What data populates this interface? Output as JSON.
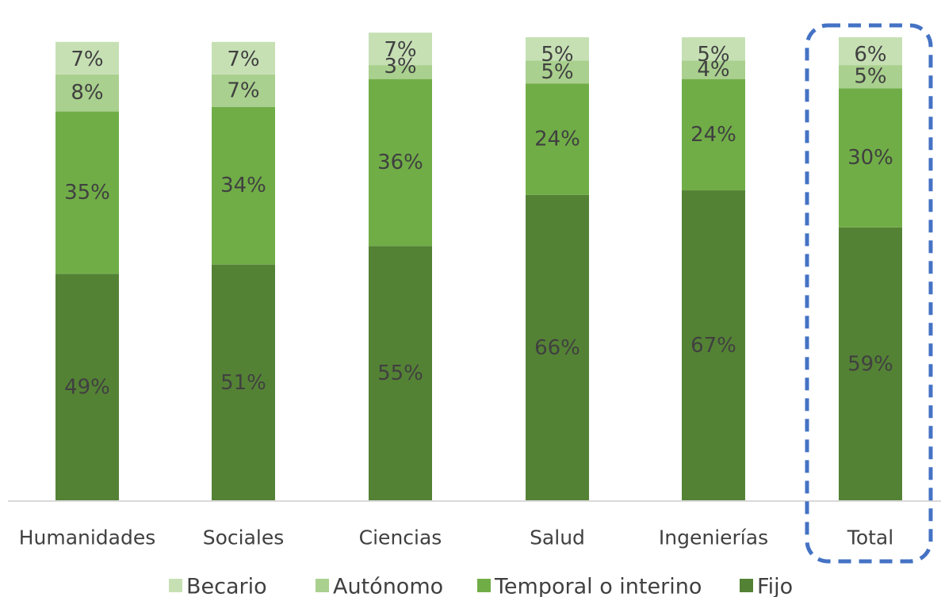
{
  "chart_data": {
    "type": "bar",
    "stacked": true,
    "categories": [
      "Humanidades",
      "Sociales",
      "Ciencias",
      "Salud",
      "Ingenierías",
      "Total"
    ],
    "series": [
      {
        "name": "Fijo",
        "color": "#548235",
        "values": [
          49,
          51,
          55,
          66,
          67,
          59
        ],
        "labels": [
          "49%",
          "51%",
          "55%",
          "66%",
          "67%",
          "59%"
        ]
      },
      {
        "name": "Temporal o interino",
        "color": "#70ad47",
        "values": [
          35,
          34,
          36,
          24,
          24,
          30
        ],
        "labels": [
          "35%",
          "34%",
          "36%",
          "24%",
          "24%",
          "30%"
        ]
      },
      {
        "name": "Autónomo",
        "color": "#a9d08e",
        "values": [
          8,
          7,
          3,
          5,
          4,
          5
        ],
        "labels": [
          "8%",
          "7%",
          "3%",
          "5%",
          "4%",
          "5%"
        ]
      },
      {
        "name": "Becario",
        "color": "#c6e0b4",
        "values": [
          7,
          7,
          7,
          5,
          5,
          6
        ],
        "labels": [
          "7%",
          "7%",
          "7%",
          "5%",
          "5%",
          "6%"
        ]
      }
    ],
    "legend_order": [
      "Becario",
      "Autónomo",
      "Temporal o interino",
      "Fijo"
    ],
    "legend_position": "bottom",
    "ylim": [
      0,
      100
    ],
    "grid": false,
    "highlight": {
      "category": "Total",
      "style": "dashed-rounded-box",
      "color": "#4472c4"
    }
  }
}
